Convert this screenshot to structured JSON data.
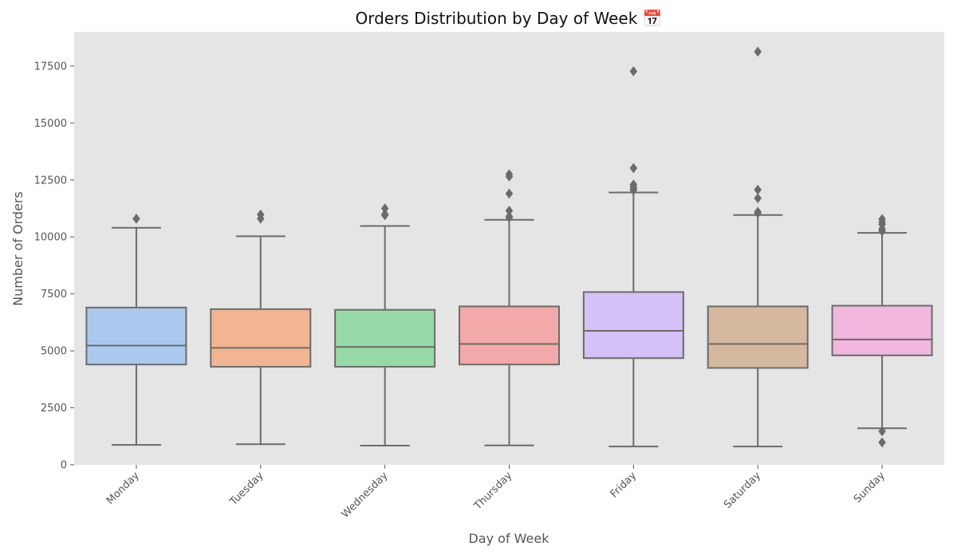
{
  "chart_data": {
    "type": "box",
    "title": "Orders Distribution by Day of Week 📅",
    "xlabel": "Day of Week",
    "ylabel": "Number of Orders",
    "ylim": [
      0,
      19000
    ],
    "y_ticks": [
      0,
      2500,
      5000,
      7500,
      10000,
      12500,
      15000,
      17500
    ],
    "grid": false,
    "legend": "none",
    "background_color": "#e5e5e5",
    "box_edge_color": "#6b6b6b",
    "categories": [
      "Monday",
      "Tuesday",
      "Wednesday",
      "Thursday",
      "Friday",
      "Saturday",
      "Sunday"
    ],
    "boxes": [
      {
        "category": "Monday",
        "color": "#abc9ee",
        "whisker_low": 870,
        "q1": 4400,
        "median": 5230,
        "q3": 6900,
        "whisker_high": 10400,
        "outliers": [
          10800
        ]
      },
      {
        "category": "Tuesday",
        "color": "#f1b591",
        "whisker_low": 900,
        "q1": 4300,
        "median": 5130,
        "q3": 6830,
        "whisker_high": 10030,
        "outliers": [
          10800,
          10980
        ]
      },
      {
        "category": "Wednesday",
        "color": "#97daa8",
        "whisker_low": 840,
        "q1": 4300,
        "median": 5170,
        "q3": 6800,
        "whisker_high": 10480,
        "outliers": [
          10950,
          11000,
          11250
        ]
      },
      {
        "category": "Thursday",
        "color": "#f2a9a7",
        "whisker_low": 850,
        "q1": 4400,
        "median": 5300,
        "q3": 6950,
        "whisker_high": 10750,
        "outliers": [
          10850,
          10900,
          11150,
          11900,
          12650,
          12750
        ]
      },
      {
        "category": "Friday",
        "color": "#d3c1f7",
        "whisker_low": 800,
        "q1": 4680,
        "median": 5880,
        "q3": 7580,
        "whisker_high": 11950,
        "outliers": [
          12050,
          12100,
          12200,
          12300,
          13020,
          17270
        ]
      },
      {
        "category": "Saturday",
        "color": "#d4b89f",
        "whisker_low": 800,
        "q1": 4250,
        "median": 5300,
        "q3": 6950,
        "whisker_high": 10960,
        "outliers": [
          11050,
          11100,
          11700,
          12070,
          18130
        ]
      },
      {
        "category": "Sunday",
        "color": "#f1b7df",
        "whisker_low": 1600,
        "q1": 4800,
        "median": 5500,
        "q3": 6980,
        "whisker_high": 10180,
        "outliers": [
          980,
          1470,
          10250,
          10350,
          10550,
          10650,
          10780
        ]
      }
    ]
  }
}
